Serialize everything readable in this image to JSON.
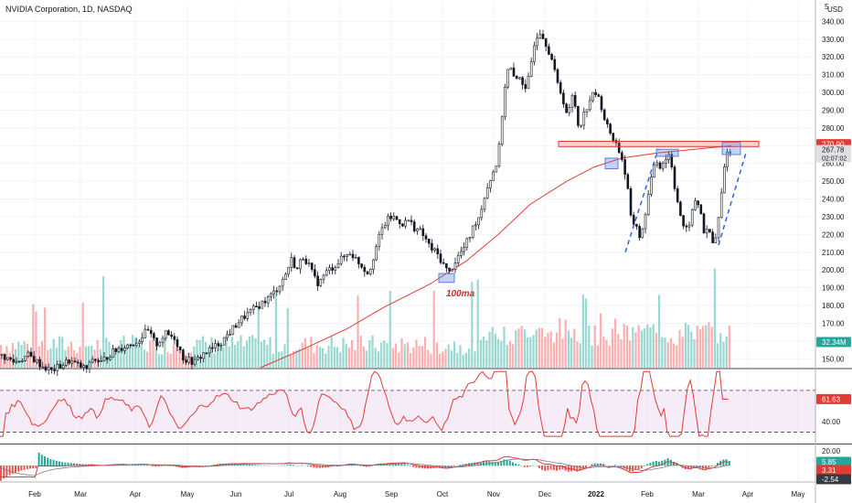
{
  "chart_data": {
    "type": "candlestick",
    "title": "NVIDIA Corporation, 1D, NASDAQ",
    "currency_label": "USD",
    "corner_glyph": "5",
    "price_axis": {
      "range": [
        145,
        350
      ],
      "ticks": [
        150,
        160,
        170,
        180,
        190,
        200,
        210,
        220,
        230,
        240,
        250,
        260,
        270,
        280,
        290,
        300,
        310,
        320,
        330,
        340
      ],
      "tick_labels": [
        "150.00",
        "160.00",
        "170.00",
        "180.00",
        "190.00",
        "200.00",
        "210.00",
        "220.00",
        "230.00",
        "240.00",
        "250.00",
        "260.00",
        "270.00",
        "280.00",
        "290.00",
        "300.00",
        "310.00",
        "320.00",
        "330.00",
        "340.00"
      ]
    },
    "x_axis": {
      "labels": [
        "Feb",
        "Mar",
        "Apr",
        "May",
        "Jun",
        "Jul",
        "Aug",
        "Sep",
        "Oct",
        "Nov",
        "Dec",
        "2022",
        "Feb",
        "Mar",
        "Apr",
        "May"
      ],
      "bold": [
        "2022"
      ]
    },
    "price_path": [
      [
        0,
        152
      ],
      [
        15,
        148
      ],
      [
        30,
        152
      ],
      [
        45,
        146
      ],
      [
        55,
        143
      ],
      [
        65,
        146
      ],
      [
        75,
        149
      ],
      [
        85,
        146
      ],
      [
        95,
        144
      ],
      [
        100,
        150
      ],
      [
        110,
        148
      ],
      [
        120,
        153
      ],
      [
        130,
        156
      ],
      [
        140,
        158
      ],
      [
        150,
        160
      ],
      [
        160,
        166
      ],
      [
        170,
        158
      ],
      [
        180,
        164
      ],
      [
        190,
        162
      ],
      [
        200,
        150
      ],
      [
        212,
        148
      ],
      [
        222,
        153
      ],
      [
        232,
        156
      ],
      [
        242,
        160
      ],
      [
        252,
        166
      ],
      [
        262,
        172
      ],
      [
        272,
        176
      ],
      [
        282,
        180
      ],
      [
        292,
        184
      ],
      [
        300,
        188
      ],
      [
        310,
        196
      ],
      [
        318,
        206
      ],
      [
        324,
        200
      ],
      [
        330,
        208
      ],
      [
        336,
        204
      ],
      [
        342,
        196
      ],
      [
        348,
        192
      ],
      [
        354,
        198
      ],
      [
        364,
        202
      ],
      [
        372,
        206
      ],
      [
        382,
        210
      ],
      [
        392,
        204
      ],
      [
        402,
        198
      ],
      [
        410,
        212
      ],
      [
        416,
        222
      ],
      [
        422,
        228
      ],
      [
        428,
        230
      ],
      [
        434,
        228
      ],
      [
        440,
        226
      ],
      [
        446,
        228
      ],
      [
        452,
        224
      ],
      [
        458,
        222
      ],
      [
        464,
        218
      ],
      [
        470,
        212
      ],
      [
        476,
        210
      ],
      [
        482,
        205
      ],
      [
        490,
        198
      ],
      [
        498,
        206
      ],
      [
        506,
        212
      ],
      [
        512,
        218
      ],
      [
        518,
        226
      ],
      [
        524,
        231
      ],
      [
        530,
        244
      ],
      [
        536,
        252
      ],
      [
        542,
        260
      ],
      [
        546,
        272
      ],
      [
        550,
        300
      ],
      [
        556,
        316
      ],
      [
        562,
        306
      ],
      [
        568,
        310
      ],
      [
        574,
        300
      ],
      [
        578,
        310
      ],
      [
        584,
        330
      ],
      [
        590,
        335
      ],
      [
        596,
        328
      ],
      [
        602,
        320
      ],
      [
        608,
        306
      ],
      [
        614,
        298
      ],
      [
        620,
        286
      ],
      [
        626,
        300
      ],
      [
        632,
        280
      ],
      [
        638,
        288
      ],
      [
        644,
        296
      ],
      [
        650,
        300
      ],
      [
        656,
        294
      ],
      [
        662,
        282
      ],
      [
        668,
        276
      ],
      [
        674,
        270
      ],
      [
        680,
        262
      ],
      [
        686,
        244
      ],
      [
        690,
        224
      ],
      [
        694,
        228
      ],
      [
        700,
        216
      ],
      [
        706,
        236
      ],
      [
        712,
        252
      ],
      [
        716,
        264
      ],
      [
        720,
        258
      ],
      [
        726,
        262
      ],
      [
        732,
        266
      ],
      [
        736,
        250
      ],
      [
        742,
        234
      ],
      [
        748,
        220
      ],
      [
        754,
        228
      ],
      [
        760,
        240
      ],
      [
        766,
        232
      ],
      [
        770,
        218
      ],
      [
        774,
        224
      ],
      [
        780,
        212
      ],
      [
        786,
        232
      ],
      [
        790,
        252
      ],
      [
        794,
        268
      ],
      [
        798,
        266
      ]
    ],
    "moving_average": {
      "label": "100ma",
      "path": [
        [
          285,
          145
        ],
        [
          330,
          155
        ],
        [
          380,
          167
        ],
        [
          420,
          179
        ],
        [
          470,
          192
        ],
        [
          510,
          205
        ],
        [
          545,
          220
        ],
        [
          580,
          237
        ],
        [
          620,
          250
        ],
        [
          650,
          258
        ],
        [
          680,
          263
        ],
        [
          720,
          266
        ],
        [
          760,
          268
        ],
        [
          800,
          270
        ]
      ]
    },
    "resistance_zone": [
      269.5,
      272.5
    ],
    "trendlines": [
      {
        "from": [
          684,
          210
        ],
        "to": [
          720,
          268
        ]
      },
      {
        "from": [
          786,
          214
        ],
        "to": [
          816,
          266
        ]
      }
    ],
    "highlight_boxes": [
      {
        "x_range": [
          480,
          497
        ],
        "price_range": [
          193,
          198
        ]
      },
      {
        "x_range": [
          662,
          676
        ],
        "price_range": [
          257,
          263
        ]
      },
      {
        "x_range": [
          718,
          742
        ],
        "price_range": [
          264,
          268
        ]
      },
      {
        "x_range": [
          790,
          810
        ],
        "price_range": [
          265,
          272
        ]
      }
    ],
    "price_badges": [
      {
        "text": "270.90",
        "price": 270.9,
        "color": "#e53935"
      },
      {
        "text": "267.78",
        "price": 267.78,
        "sub": "02:07:02",
        "color": "#e0e0e0",
        "text_color": "#131722"
      }
    ],
    "volume": {
      "last_label": "32.34M",
      "label_color": "#26a69a"
    },
    "rsi": {
      "ticks": [
        40,
        60
      ],
      "tick_labels": [
        "40.00",
        "60.00"
      ],
      "upper_band": 70,
      "lower_band": 30,
      "last_value": 61.63,
      "last_label": "61.63",
      "color": "#e53935"
    },
    "macd": {
      "tick_labels": [
        "20.00",
        "0.00"
      ],
      "badges": [
        {
          "text": "5.85",
          "color": "#26a69a"
        },
        {
          "text": "3.31",
          "color": "#e53935"
        },
        {
          "text": "-2.54",
          "color": "#363a45"
        }
      ]
    },
    "colors": {
      "up": "#26a69a",
      "down": "#ef5350",
      "candle": "#131722",
      "ma": "#e53935",
      "trend": "#2962ff",
      "box": "#5b7fd6",
      "grid": "#f0f3fa"
    }
  }
}
